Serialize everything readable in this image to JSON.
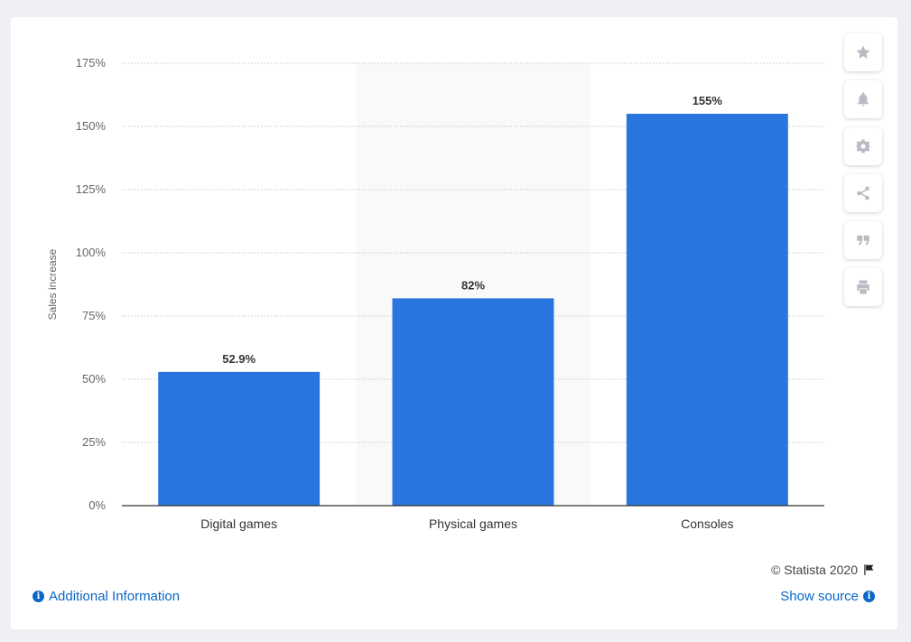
{
  "chart_data": {
    "type": "bar",
    "categories": [
      "Digital games",
      "Physical games",
      "Consoles"
    ],
    "values": [
      52.9,
      82,
      155
    ],
    "data_labels": [
      "52.9%",
      "82%",
      "155%"
    ],
    "ylabel": "Sales increase",
    "ylim": [
      0,
      175
    ],
    "yticks": [
      0,
      25,
      50,
      75,
      100,
      125,
      150,
      175
    ],
    "ytick_labels": [
      "0%",
      "25%",
      "50%",
      "75%",
      "100%",
      "125%",
      "150%",
      "175%"
    ],
    "bar_color": "#2876dd",
    "grid": true,
    "highlighted_category": "Physical games"
  },
  "footer": {
    "copyright": "© Statista 2020",
    "additional_info": "Additional Information",
    "show_source": "Show source"
  },
  "toolbar": [
    "star-icon",
    "bell-icon",
    "gear-icon",
    "share-icon",
    "quote-icon",
    "print-icon"
  ]
}
